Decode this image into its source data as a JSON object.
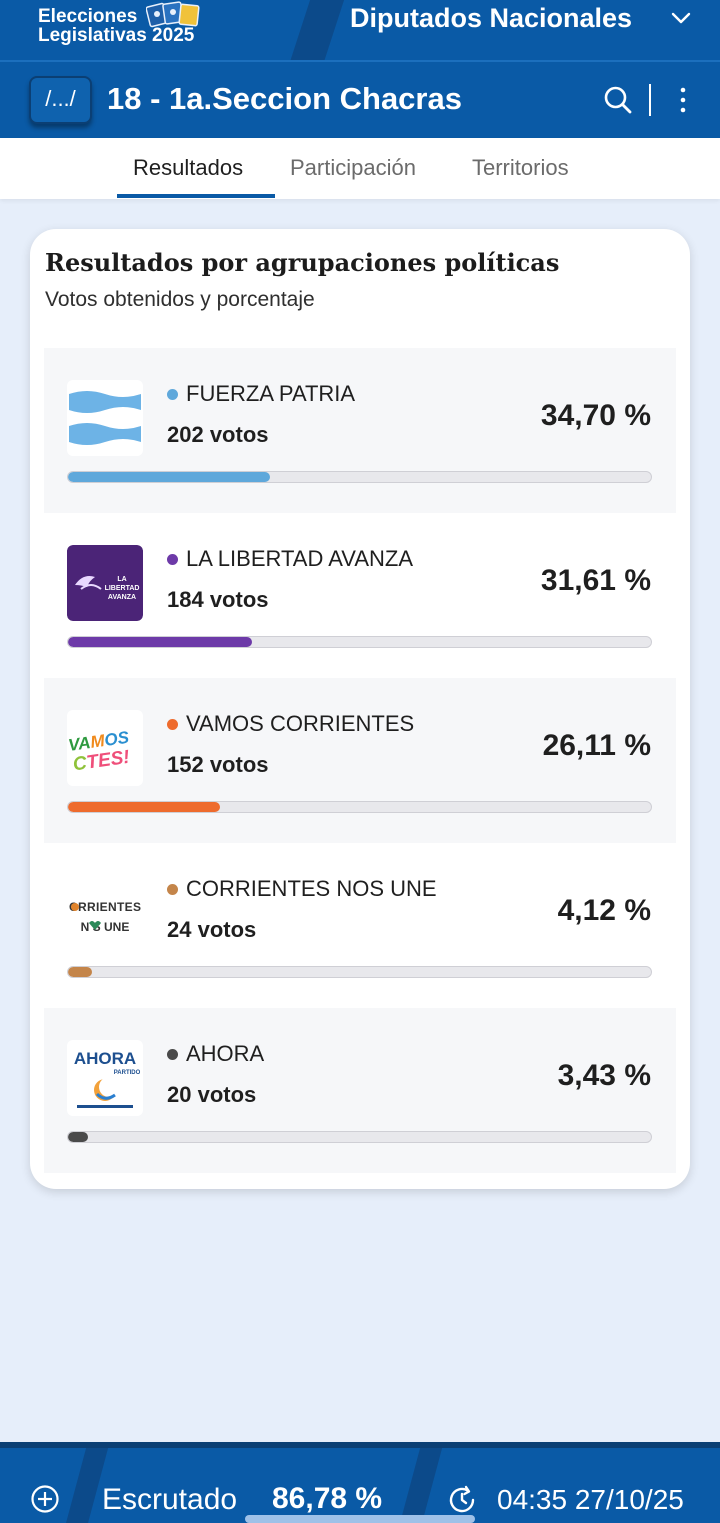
{
  "header": {
    "brand_line1": "Elecciones",
    "brand_line2": "Legislativas 2025",
    "chamber": "Diputados Nacionales",
    "chamber_chevron_icon": "chevron-down-icon"
  },
  "location": {
    "back_label": "/.../",
    "title": "18 - 1a.Seccion Chacras",
    "search_icon": "search-icon",
    "more_icon": "more-vertical-icon"
  },
  "tabs": [
    {
      "label": "Resultados",
      "active": true
    },
    {
      "label": "Participación",
      "active": false
    },
    {
      "label": "Territorios",
      "active": false
    }
  ],
  "results": {
    "title": "Resultados por agrupaciones políticas",
    "subtitle": "Votos obtenidos y porcentaje",
    "parties": [
      {
        "name": "FUERZA PATRIA",
        "votes": "202 votos",
        "percent": "34,70 %",
        "share": 0.347,
        "color": "#5fa8db"
      },
      {
        "name": "LA LIBERTAD AVANZA",
        "votes": "184 votos",
        "percent": "31,61 %",
        "share": 0.3161,
        "color": "#6d3aa8",
        "logo_text": "LA LIBERTAD AVANZA"
      },
      {
        "name": "VAMOS CORRIENTES",
        "votes": "152 votos",
        "percent": "26,11 %",
        "share": 0.2611,
        "color": "#ee6b2d",
        "logo_text": "VAMOS CTES!"
      },
      {
        "name": "CORRIENTES NOS UNE",
        "votes": "24 votos",
        "percent": "4,12 %",
        "share": 0.0412,
        "color": "#c4854a",
        "logo_text": "CRRIENTES NS UNE"
      },
      {
        "name": "AHORA",
        "votes": "20 votos",
        "percent": "3,43 %",
        "share": 0.0343,
        "color": "#4a4a4a",
        "logo_text": "AHORA PARTIDO"
      }
    ]
  },
  "footer": {
    "scrutiny_label": "Escrutado",
    "scrutiny_value": "86,78 %",
    "timestamp": "04:35 27/10/25",
    "plus_icon": "plus-circle-icon",
    "refresh_icon": "refresh-clock-icon"
  }
}
